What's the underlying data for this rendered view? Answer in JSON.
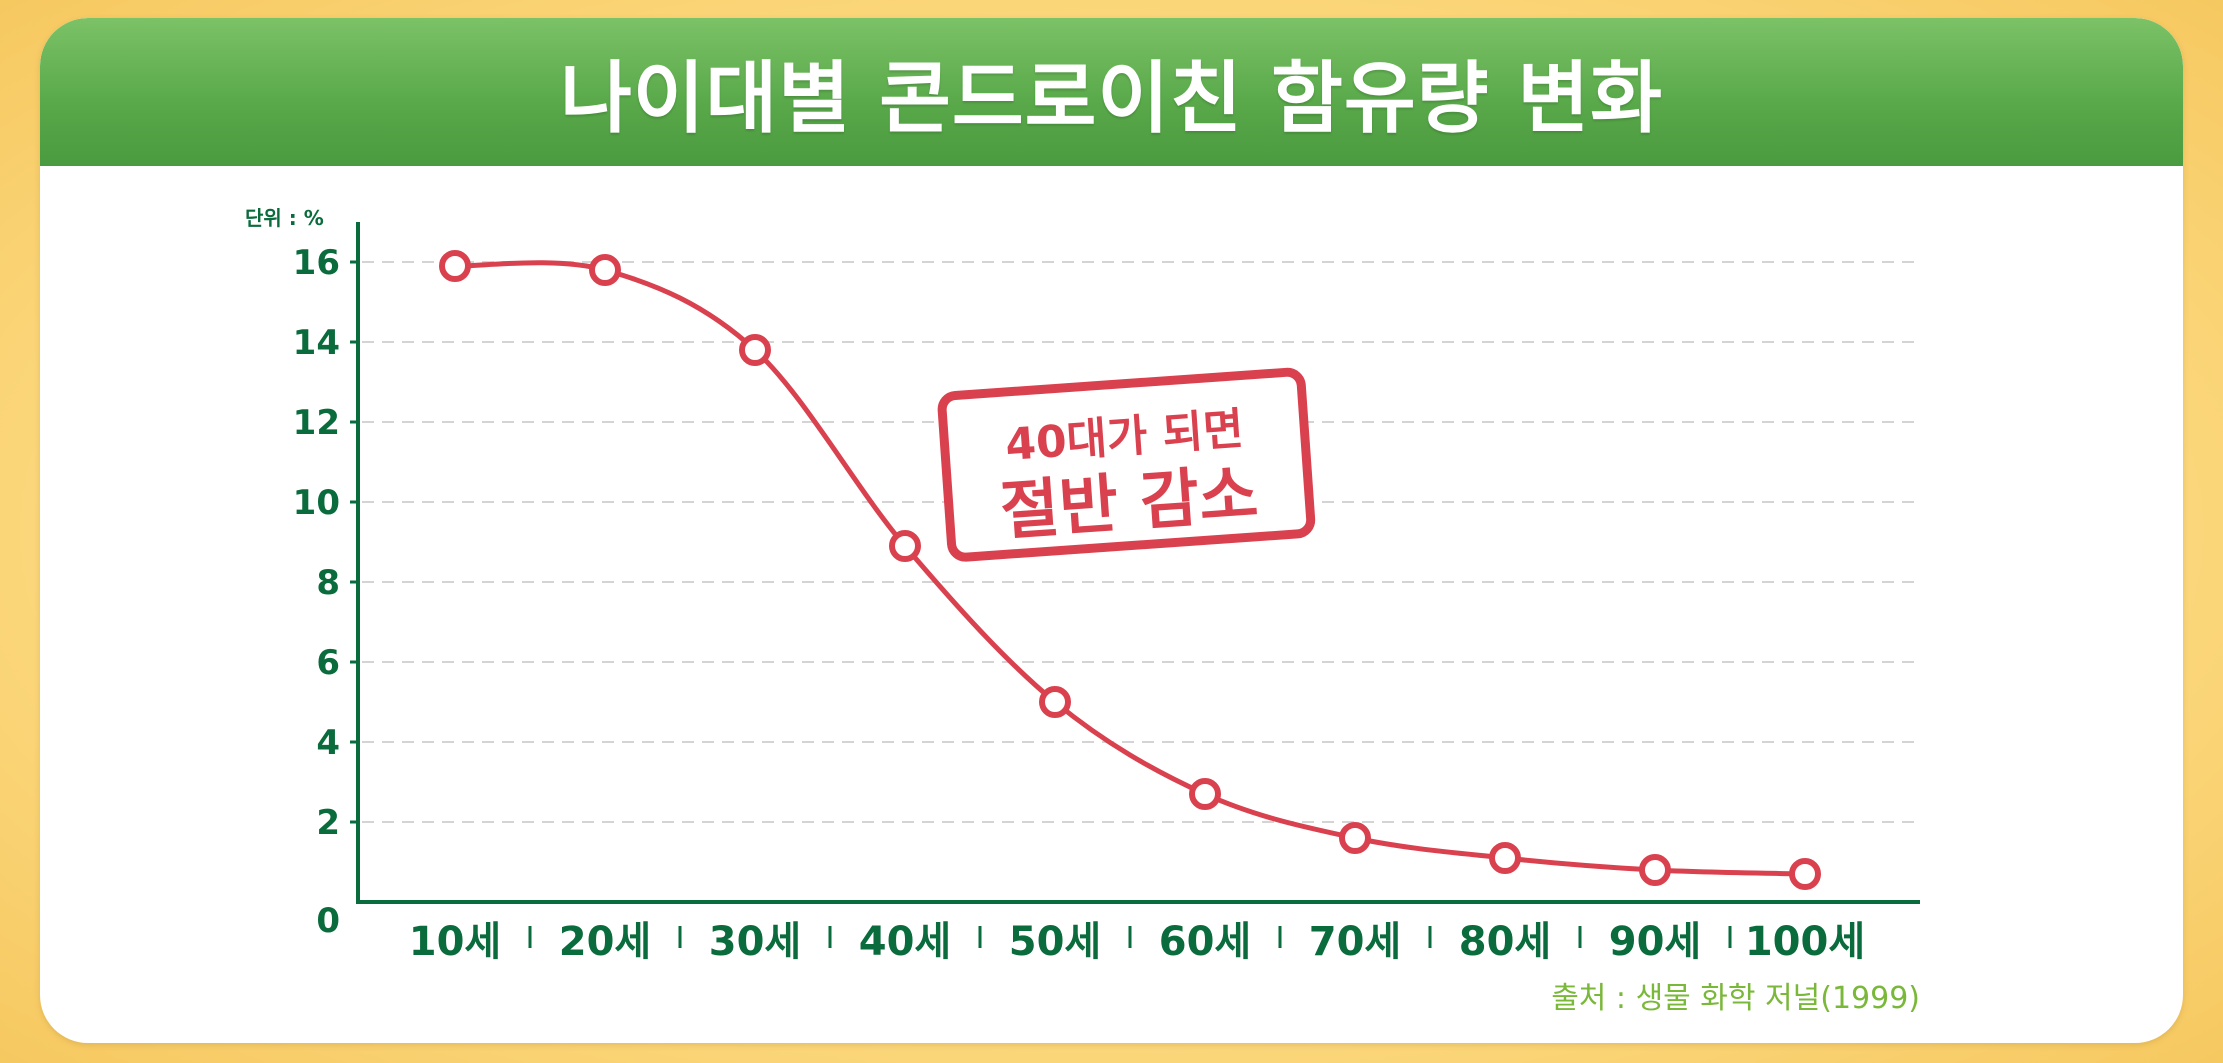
{
  "title": "나이대별 콘드로이친 함유량 변화",
  "unit_label": "단위 : %",
  "source": "출처 : 생물 화학 저널(1999)",
  "stamp": {
    "line1": "40대가 되면",
    "line2": "절반 감소"
  },
  "colors": {
    "axis": "#0a6b3c",
    "line": "#d9414f",
    "banner": "#5aaa4b",
    "source": "#7ab83a"
  },
  "chart_data": {
    "type": "line",
    "categories": [
      "10세",
      "20세",
      "30세",
      "40세",
      "50세",
      "60세",
      "70세",
      "80세",
      "90세",
      "100세"
    ],
    "values": [
      15.9,
      15.8,
      13.8,
      8.9,
      5.0,
      2.7,
      1.6,
      1.1,
      0.8,
      0.7
    ],
    "yticks": [
      "0",
      "2",
      "4",
      "6",
      "8",
      "10",
      "12",
      "14",
      "16"
    ],
    "ylim": [
      0,
      16
    ],
    "grid": true
  }
}
